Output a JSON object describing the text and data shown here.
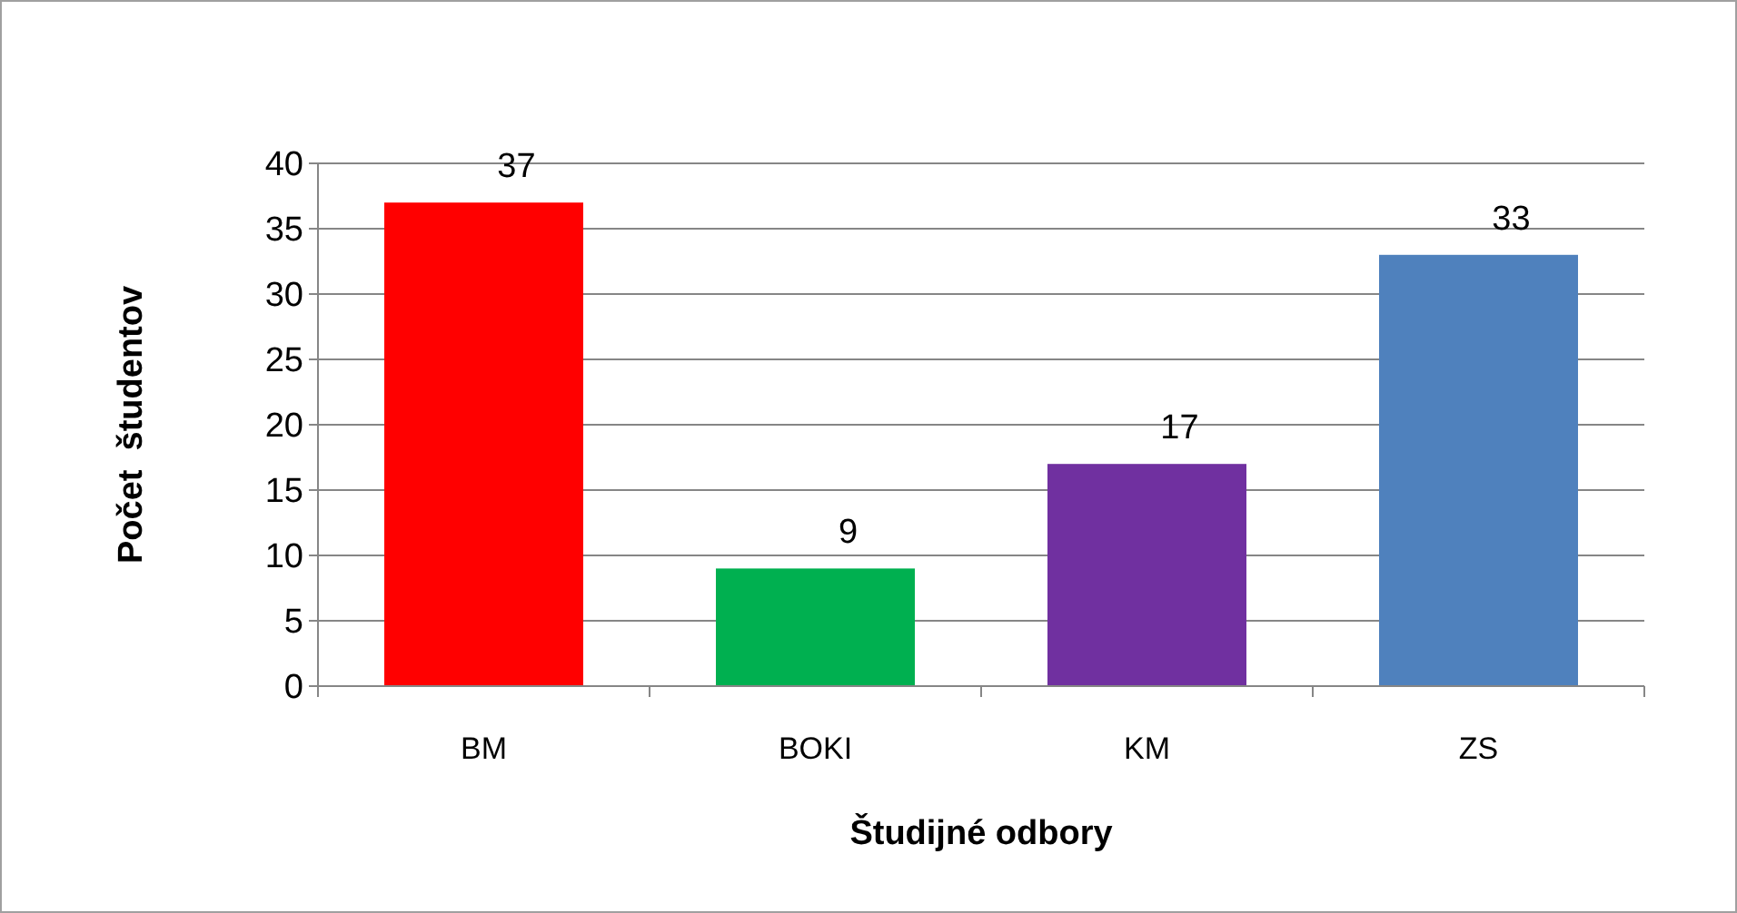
{
  "chart_data": {
    "type": "bar",
    "xlabel": "Študijné odbory",
    "ylabel": "Počet  študentov",
    "categories": [
      "BM",
      "BOKI",
      "KM",
      "ZS"
    ],
    "values": [
      37,
      9,
      17,
      33
    ],
    "colors": [
      "#ff0000",
      "#00b050",
      "#7030a0",
      "#4f81bd"
    ],
    "ylim": [
      0,
      40
    ],
    "yticks": [
      0,
      5,
      10,
      15,
      20,
      25,
      30,
      35,
      40
    ],
    "grid": "y",
    "data_labels": true
  }
}
